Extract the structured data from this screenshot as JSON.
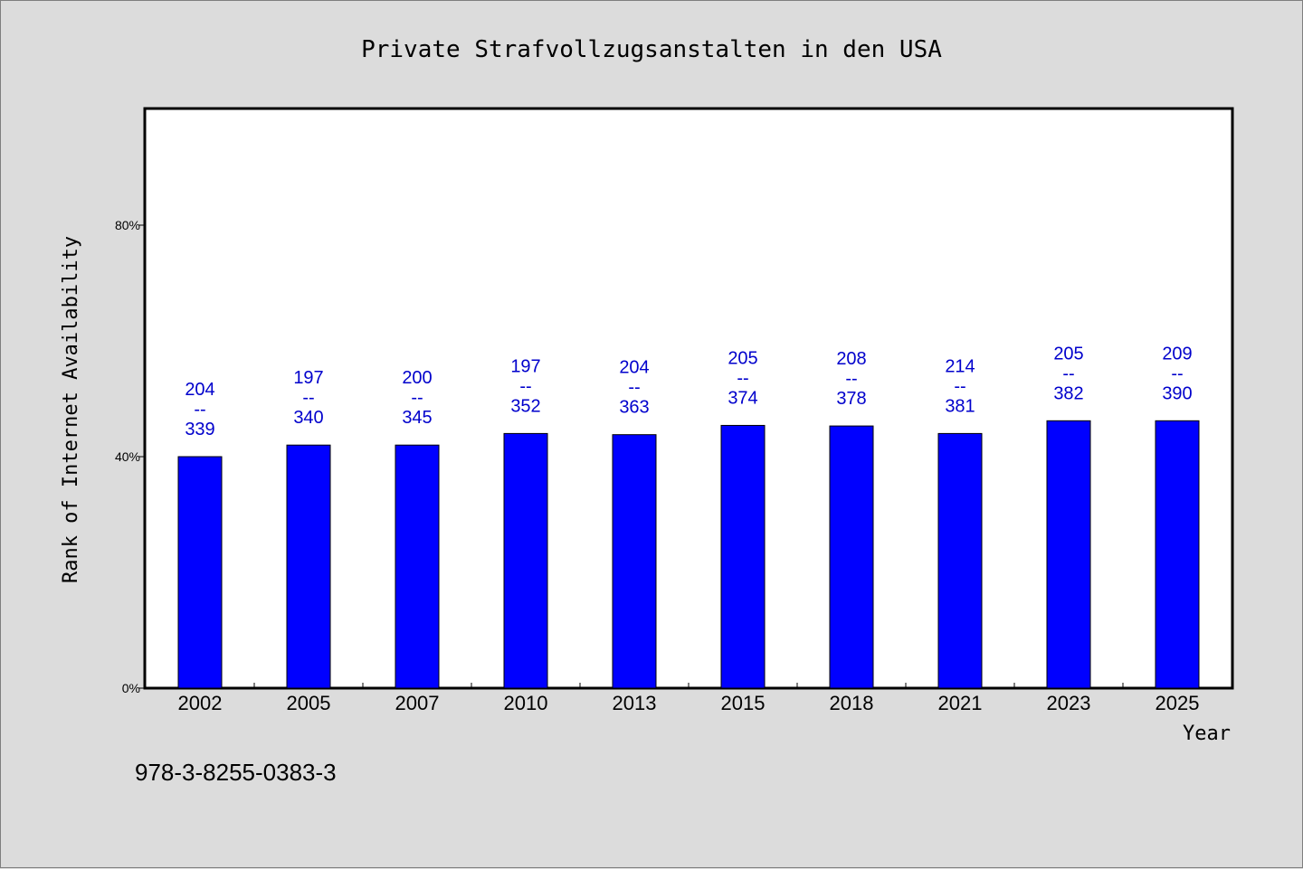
{
  "chart_data": {
    "type": "bar",
    "title": "Private Strafvollzugsanstalten in den USA",
    "xlabel": "Year",
    "ylabel": "Rank of Internet Availability",
    "categories": [
      "2002",
      "2005",
      "2007",
      "2010",
      "2013",
      "2015",
      "2018",
      "2021",
      "2023",
      "2025"
    ],
    "values": [
      40,
      42,
      42,
      44,
      43.8,
      45.4,
      45.3,
      44,
      46.2,
      46.2
    ],
    "ylim": [
      0,
      100
    ],
    "yticks": [
      0,
      40,
      80
    ],
    "ytick_labels": [
      "0%",
      "40%",
      "80%"
    ],
    "bar_labels": [
      {
        "top": "204",
        "separator": "--",
        "bottom": "339"
      },
      {
        "top": "197",
        "separator": "--",
        "bottom": "340"
      },
      {
        "top": "200",
        "separator": "--",
        "bottom": "345"
      },
      {
        "top": "197",
        "separator": "--",
        "bottom": "352"
      },
      {
        "top": "204",
        "separator": "--",
        "bottom": "363"
      },
      {
        "top": "205",
        "separator": "--",
        "bottom": "374"
      },
      {
        "top": "208",
        "separator": "--",
        "bottom": "378"
      },
      {
        "top": "214",
        "separator": "--",
        "bottom": "381"
      },
      {
        "top": "205",
        "separator": "--",
        "bottom": "382"
      },
      {
        "top": "209",
        "separator": "--",
        "bottom": "390"
      }
    ],
    "bar_color": "#0000ff",
    "label_color": "#0000cc",
    "grid": false
  },
  "footer": {
    "isbn": "978-3-8255-0383-3"
  }
}
